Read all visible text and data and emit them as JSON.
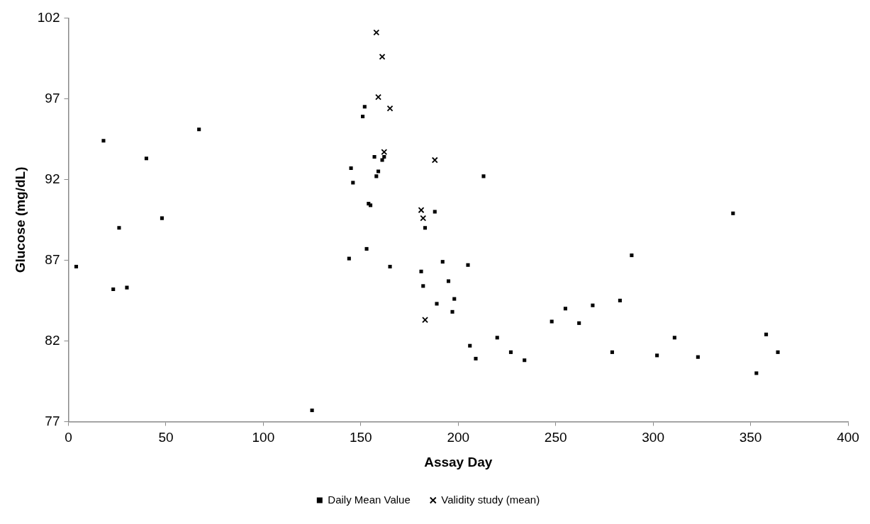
{
  "chart_data": {
    "type": "scatter",
    "xlabel": "Assay Day",
    "ylabel": "Glucose (mg/dL)",
    "xlim": [
      0,
      400
    ],
    "xticks": [
      0,
      50,
      100,
      150,
      200,
      250,
      300,
      350,
      400
    ],
    "ylim": [
      77,
      102
    ],
    "yticks": [
      77,
      82,
      87,
      92,
      97,
      102
    ],
    "grid": false,
    "legend": "bottom",
    "series": [
      {
        "name": "Daily Mean Value",
        "color": "#000000",
        "marker": "square",
        "x": [
          4,
          18,
          23,
          26,
          30,
          40,
          48,
          67,
          125,
          144,
          145,
          146,
          151,
          152,
          153,
          154,
          155,
          157,
          158,
          159,
          161,
          162,
          165,
          181,
          182,
          183,
          188,
          189,
          192,
          195,
          197,
          198,
          205,
          206,
          209,
          213,
          220,
          227,
          234,
          248,
          255,
          262,
          269,
          279,
          283,
          289,
          302,
          311,
          323,
          341,
          353,
          358,
          364
        ],
        "values": [
          86.6,
          94.4,
          85.2,
          89.0,
          85.3,
          93.3,
          89.6,
          95.1,
          77.7,
          87.1,
          92.7,
          91.8,
          95.9,
          96.5,
          87.7,
          90.5,
          90.4,
          93.4,
          92.2,
          92.5,
          93.2,
          93.4,
          86.6,
          86.3,
          85.4,
          89.0,
          90.0,
          84.3,
          86.9,
          85.7,
          83.8,
          84.6,
          86.7,
          81.7,
          80.9,
          92.2,
          82.2,
          81.3,
          80.8,
          83.2,
          84.0,
          83.1,
          84.2,
          81.3,
          84.5,
          87.3,
          81.1,
          82.2,
          81.0,
          89.9,
          80.0,
          82.4,
          81.3
        ]
      },
      {
        "name": "Validity study (mean)",
        "color": "#000000",
        "marker": "cross",
        "x": [
          158,
          161,
          159,
          165,
          162,
          188,
          181,
          182,
          183
        ],
        "values": [
          101.1,
          99.6,
          97.1,
          96.4,
          93.7,
          93.2,
          90.1,
          89.6,
          83.3
        ]
      }
    ]
  }
}
